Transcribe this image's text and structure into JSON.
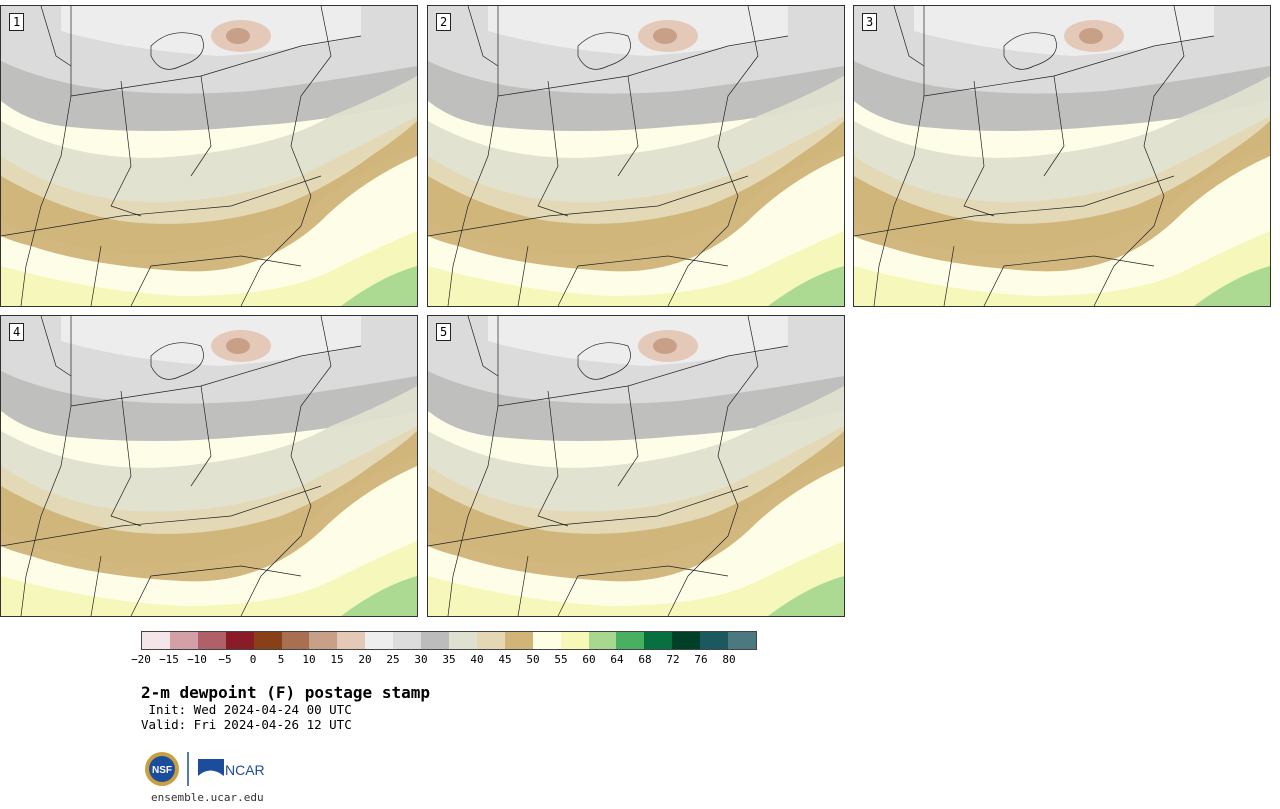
{
  "stamps": [
    {
      "label": "1"
    },
    {
      "label": "2"
    },
    {
      "label": "3"
    },
    {
      "label": "4"
    },
    {
      "label": "5"
    }
  ],
  "colorbar": {
    "colors": [
      "#f4e6e8",
      "#d4a0a8",
      "#b06068",
      "#8a1c28",
      "#884018",
      "#a87050",
      "#c8a088",
      "#e4c8b8",
      "#eeeeee",
      "#dcdcdc",
      "#bcbcbc",
      "#e0e0d0",
      "#e4d8b4",
      "#d0b478",
      "#fefee4",
      "#f6f8b8",
      "#a8d890",
      "#48b060",
      "#087040",
      "#004028",
      "#1c5860",
      "#4c7880"
    ],
    "ticks": [
      "−20",
      "−15",
      "−10",
      "−5",
      "0",
      "5",
      "10",
      "15",
      "20",
      "25",
      "30",
      "35",
      "40",
      "45",
      "50",
      "55",
      "60",
      "64",
      "68",
      "72",
      "76",
      "80"
    ]
  },
  "title": "2-m dewpoint (F) postage stamp",
  "init": " Init: Wed 2024-04-24 00 UTC",
  "valid": "Valid: Fri 2024-04-26 12 UTC",
  "logos": {
    "nsf": "NSF",
    "ncar": "NCAR"
  },
  "url": "ensemble.ucar.edu"
}
